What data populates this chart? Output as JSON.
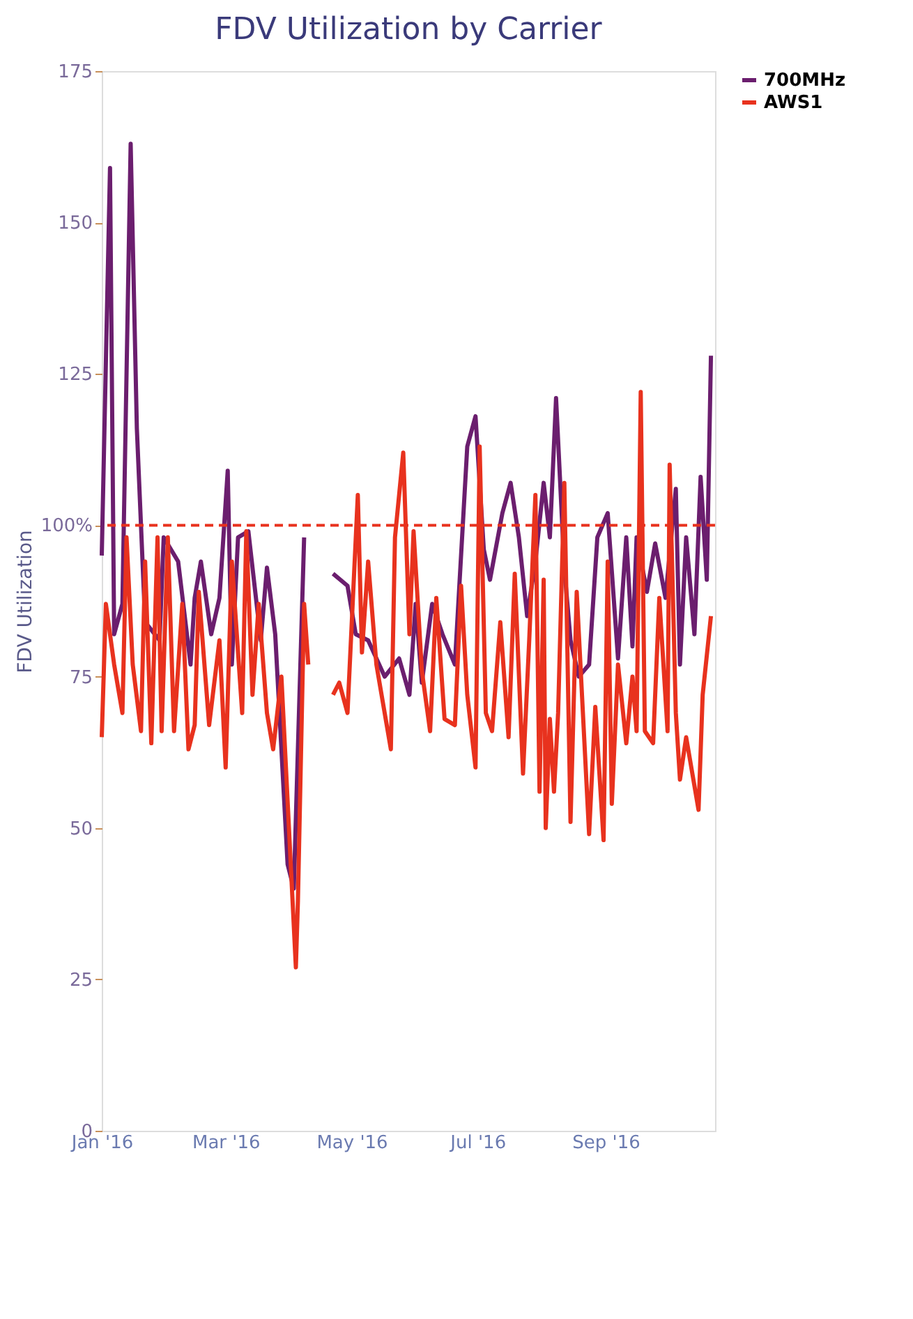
{
  "chart_data": {
    "type": "line",
    "title": "FDV Utilization by Carrier",
    "ylabel": "FDV Utilization",
    "ylim": [
      0,
      175
    ],
    "yticks": [
      0,
      25,
      50,
      75,
      {
        "value": 100,
        "label": "100%"
      },
      125,
      150,
      175
    ],
    "xlim": [
      "2016-01-01",
      "2016-10-24"
    ],
    "xticks": [
      {
        "value": "2016-01-01",
        "label": "Jan '16"
      },
      {
        "value": "2016-03-01",
        "label": "Mar '16"
      },
      {
        "value": "2016-05-01",
        "label": "May '16"
      },
      {
        "value": "2016-07-01",
        "label": "Jul '16"
      },
      {
        "value": "2016-09-01",
        "label": "Sep '16"
      }
    ],
    "grid": false,
    "legend": "right",
    "marker": "none",
    "line_style": "solid",
    "ref_lines": [
      {
        "axis": "y",
        "value": 100,
        "color": "#e8321e",
        "line_style": "dashed"
      }
    ],
    "series": [
      {
        "name": "700MHz",
        "color": "#6b1e6e",
        "x": [
          "2016-01-01",
          "2016-01-05",
          "2016-01-07",
          "2016-01-11",
          "2016-01-15",
          "2016-01-18",
          "2016-01-22",
          "2016-01-29",
          "2016-01-31",
          "2016-02-07",
          "2016-02-13",
          "2016-02-15",
          "2016-02-18",
          "2016-02-23",
          "2016-02-27",
          "2016-03-02",
          "2016-03-04",
          "2016-03-07",
          "2016-03-12",
          "2016-03-18",
          "2016-03-21",
          "2016-03-25",
          "2016-03-31",
          "2016-04-03",
          "2016-04-08",
          "2016-04-15",
          "2016-04-22",
          "2016-04-29",
          "2016-05-03",
          "2016-05-09",
          "2016-05-17",
          "2016-05-24",
          "2016-05-29",
          "2016-06-01",
          "2016-06-04",
          "2016-06-09",
          "2016-06-14",
          "2016-06-20",
          "2016-06-26",
          "2016-06-30",
          "2016-07-04",
          "2016-07-07",
          "2016-07-13",
          "2016-07-17",
          "2016-07-21",
          "2016-07-25",
          "2016-07-29",
          "2016-08-02",
          "2016-08-05",
          "2016-08-08",
          "2016-08-12",
          "2016-08-15",
          "2016-08-19",
          "2016-08-24",
          "2016-08-28",
          "2016-09-02",
          "2016-09-07",
          "2016-09-11",
          "2016-09-14",
          "2016-09-16",
          "2016-09-21",
          "2016-09-25",
          "2016-09-30",
          "2016-10-05",
          "2016-10-07",
          "2016-10-10",
          "2016-10-14",
          "2016-10-17",
          "2016-10-20",
          "2016-10-22"
        ],
        "values": [
          95,
          159,
          82,
          87,
          163,
          116,
          84,
          81,
          98,
          94,
          77,
          88,
          94,
          82,
          88,
          109,
          77,
          98,
          99,
          81,
          93,
          82,
          44,
          40,
          98,
          null,
          92,
          90,
          82,
          81,
          75,
          78,
          72,
          87,
          74,
          87,
          82,
          77,
          113,
          118,
          96,
          91,
          102,
          107,
          98,
          85,
          94,
          107,
          98,
          121,
          93,
          81,
          75,
          77,
          98,
          102,
          78,
          98,
          80,
          98,
          89,
          97,
          88,
          106,
          77,
          98,
          82,
          108,
          91,
          128
        ]
      },
      {
        "name": "AWS1",
        "color": "#e8321e",
        "x": [
          "2016-01-01",
          "2016-01-03",
          "2016-01-07",
          "2016-01-11",
          "2016-01-13",
          "2016-01-16",
          "2016-01-20",
          "2016-01-22",
          "2016-01-25",
          "2016-01-28",
          "2016-01-30",
          "2016-02-02",
          "2016-02-05",
          "2016-02-09",
          "2016-02-12",
          "2016-02-15",
          "2016-02-17",
          "2016-02-22",
          "2016-02-27",
          "2016-03-01",
          "2016-03-04",
          "2016-03-09",
          "2016-03-11",
          "2016-03-14",
          "2016-03-17",
          "2016-03-21",
          "2016-03-24",
          "2016-03-28",
          "2016-04-04",
          "2016-04-05",
          "2016-04-08",
          "2016-04-10",
          "2016-04-15",
          "2016-04-22",
          "2016-04-25",
          "2016-04-29",
          "2016-05-04",
          "2016-05-06",
          "2016-05-09",
          "2016-05-13",
          "2016-05-20",
          "2016-05-22",
          "2016-05-26",
          "2016-05-29",
          "2016-05-31",
          "2016-06-04",
          "2016-06-08",
          "2016-06-11",
          "2016-06-15",
          "2016-06-20",
          "2016-06-23",
          "2016-06-26",
          "2016-06-30",
          "2016-07-02",
          "2016-07-05",
          "2016-07-08",
          "2016-07-12",
          "2016-07-16",
          "2016-07-19",
          "2016-07-23",
          "2016-07-26",
          "2016-07-29",
          "2016-07-31",
          "2016-08-02",
          "2016-08-03",
          "2016-08-05",
          "2016-08-07",
          "2016-08-09",
          "2016-08-12",
          "2016-08-15",
          "2016-08-18",
          "2016-08-24",
          "2016-08-27",
          "2016-08-31",
          "2016-09-02",
          "2016-09-04",
          "2016-09-07",
          "2016-09-11",
          "2016-09-14",
          "2016-09-16",
          "2016-09-18",
          "2016-09-20",
          "2016-09-24",
          "2016-09-27",
          "2016-10-01",
          "2016-10-02",
          "2016-10-05",
          "2016-10-07",
          "2016-10-10",
          "2016-10-16",
          "2016-10-18",
          "2016-10-22"
        ],
        "values": [
          65,
          87,
          77,
          69,
          98,
          77,
          66,
          94,
          64,
          98,
          66,
          98,
          66,
          87,
          63,
          67,
          89,
          67,
          81,
          60,
          94,
          69,
          99,
          72,
          87,
          69,
          63,
          75,
          27,
          38,
          87,
          77,
          null,
          72,
          74,
          69,
          105,
          79,
          94,
          77,
          63,
          98,
          112,
          82,
          99,
          76,
          66,
          88,
          68,
          67,
          90,
          72,
          60,
          113,
          69,
          66,
          84,
          65,
          92,
          59,
          81,
          105,
          56,
          91,
          50,
          68,
          56,
          69,
          107,
          51,
          89,
          49,
          70,
          48,
          94,
          54,
          77,
          64,
          75,
          66,
          122,
          66,
          64,
          88,
          66,
          110,
          69,
          58,
          65,
          53,
          72,
          85
        ]
      }
    ]
  }
}
